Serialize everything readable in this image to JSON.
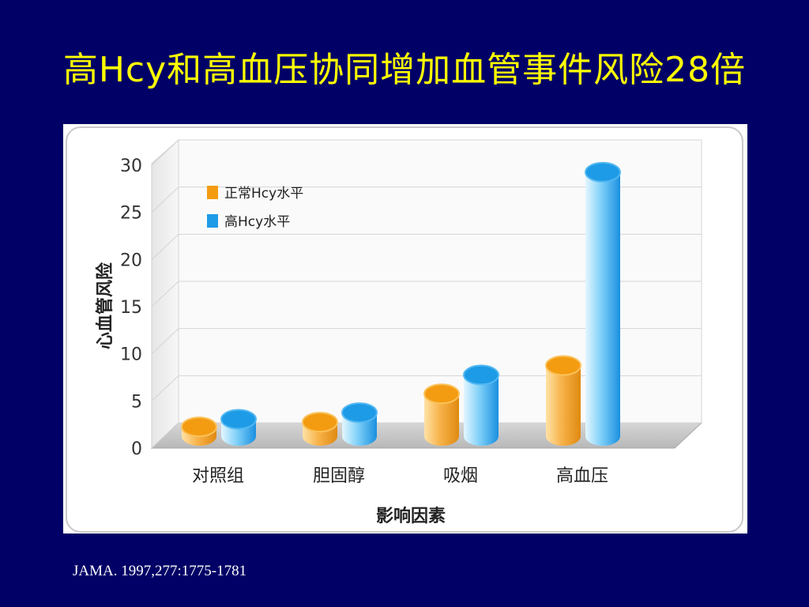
{
  "slide": {
    "title": "高Hcy和高血压协同增加血管事件风险28倍",
    "citation": "JAMA. 1997,277:1775-1781"
  },
  "colors": {
    "background": "#000066",
    "title": "#ffff00",
    "normal_series": "#f39c12",
    "high_series": "#1e9be6"
  },
  "chart_data": {
    "type": "bar",
    "title": "",
    "xlabel": "影响因素",
    "ylabel": "心血管风险",
    "ylim": [
      0,
      30
    ],
    "yticks": [
      0,
      5,
      10,
      15,
      20,
      25,
      30
    ],
    "categories": [
      "对照组",
      "胆固醇",
      "吸烟",
      "高血压"
    ],
    "series": [
      {
        "name": "正常Hcy水平",
        "values": [
          1,
          1.5,
          4.5,
          7.5
        ]
      },
      {
        "name": "高Hcy水平",
        "values": [
          1.8,
          2.5,
          6.5,
          28
        ]
      }
    ],
    "legend_position": "top-left",
    "grid": true,
    "style": "3d-cylinder"
  }
}
